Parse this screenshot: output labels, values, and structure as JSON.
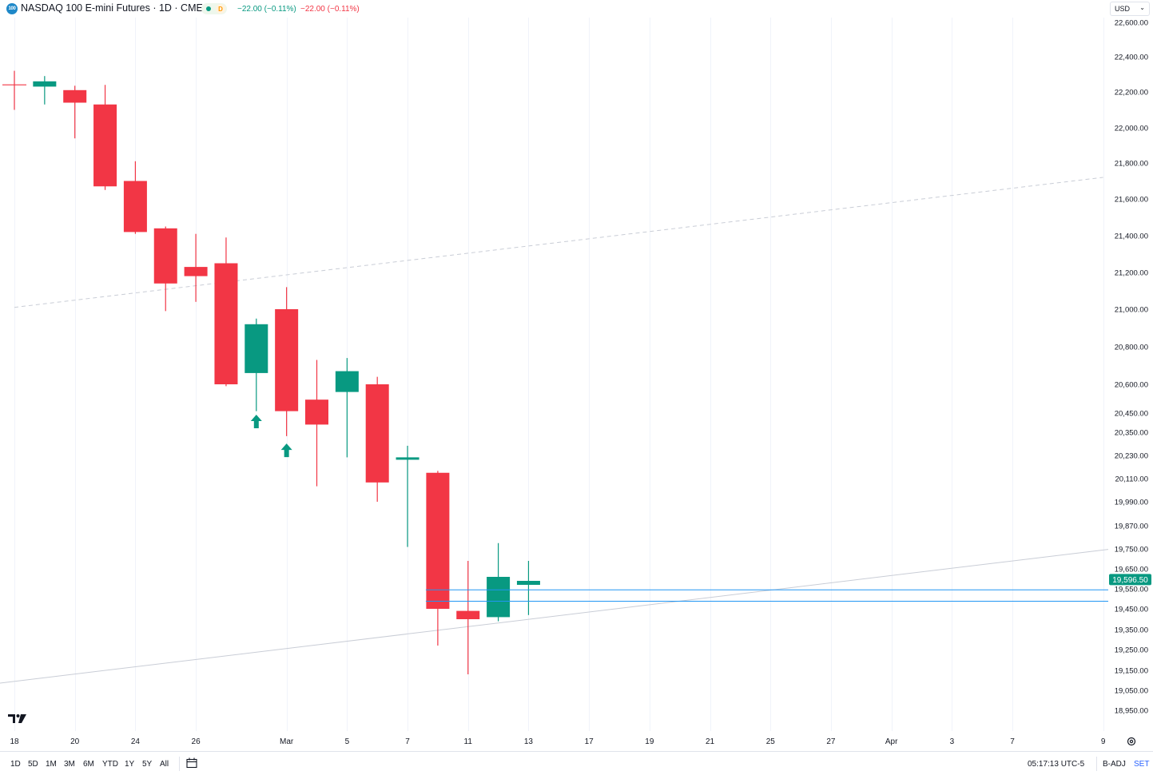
{
  "header": {
    "symbol_badge": "100",
    "title": "NASDAQ 100 E-mini Futures · 1D · CME",
    "timeframe_badge": "D",
    "change_green": "−22.00 (−0.11%)",
    "change_red": "−22.00 (−0.11%)",
    "currency": "USD",
    "colors": {
      "up": "#089981",
      "down": "#f23645",
      "accent": "#2962ff",
      "badge_logo": "#1e88c8",
      "badge_d": "#ff9800"
    }
  },
  "chart_data": {
    "type": "candlestick",
    "title": "NASDAQ 100 E-mini Futures · 1D · CME",
    "ylim": [
      18850,
      22620
    ],
    "y_ticks": [
      "22,600.00",
      "22,400.00",
      "22,200.00",
      "22,000.00",
      "21,800.00",
      "21,600.00",
      "21,400.00",
      "21,200.00",
      "21,000.00",
      "20,800.00",
      "20,600.00",
      "20,450.00",
      "20,350.00",
      "20,230.00",
      "20,110.00",
      "19,990.00",
      "19,870.00",
      "19,750.00",
      "19,650.00",
      "19,550.00",
      "19,450.00",
      "19,350.00",
      "19,250.00",
      "19,150.00",
      "19,050.00",
      "18,950.00"
    ],
    "x_ticks": [
      "18",
      "20",
      "24",
      "26",
      "Mar",
      "5",
      "7",
      "11",
      "13",
      "17",
      "19",
      "21",
      "25",
      "27",
      "Apr",
      "3",
      "7",
      "9"
    ],
    "candles": [
      {
        "date": "Feb 18",
        "open": 22240,
        "high": 22320,
        "low": 22100,
        "close": 22240,
        "dir": "doji"
      },
      {
        "date": "Feb 19",
        "open": 22230,
        "high": 22290,
        "low": 22130,
        "close": 22260,
        "dir": "up"
      },
      {
        "date": "Feb 20",
        "open": 22210,
        "high": 22235,
        "low": 21940,
        "close": 22140,
        "dir": "down"
      },
      {
        "date": "Feb 21",
        "open": 22130,
        "high": 22240,
        "low": 21650,
        "close": 21670,
        "dir": "down"
      },
      {
        "date": "Feb 24",
        "open": 21700,
        "high": 21810,
        "low": 21410,
        "close": 21420,
        "dir": "down"
      },
      {
        "date": "Feb 25",
        "open": 21440,
        "high": 21450,
        "low": 20990,
        "close": 21140,
        "dir": "down"
      },
      {
        "date": "Feb 26",
        "open": 21230,
        "high": 21410,
        "low": 21040,
        "close": 21180,
        "dir": "down"
      },
      {
        "date": "Feb 27",
        "open": 21250,
        "high": 21390,
        "low": 20590,
        "close": 20600,
        "dir": "down"
      },
      {
        "date": "Feb 28",
        "open": 20660,
        "high": 20950,
        "low": 20460,
        "close": 20920,
        "dir": "up"
      },
      {
        "date": "Mar 3",
        "open": 21000,
        "high": 21120,
        "low": 20330,
        "close": 20460,
        "dir": "down"
      },
      {
        "date": "Mar 4",
        "open": 20520,
        "high": 20730,
        "low": 20070,
        "close": 20390,
        "dir": "down"
      },
      {
        "date": "Mar 5",
        "open": 20560,
        "high": 20740,
        "low": 20220,
        "close": 20670,
        "dir": "up"
      },
      {
        "date": "Mar 6",
        "open": 20600,
        "high": 20640,
        "low": 19990,
        "close": 20090,
        "dir": "down"
      },
      {
        "date": "Mar 7",
        "open": 20220,
        "high": 20280,
        "low": 19760,
        "close": 20210,
        "dir": "up"
      },
      {
        "date": "Mar 10",
        "open": 20140,
        "high": 20150,
        "low": 19270,
        "close": 19450,
        "dir": "down"
      },
      {
        "date": "Mar 11",
        "open": 19440,
        "high": 19690,
        "low": 19130,
        "close": 19400,
        "dir": "down"
      },
      {
        "date": "Mar 12",
        "open": 19410,
        "high": 19780,
        "low": 19390,
        "close": 19610,
        "dir": "up"
      },
      {
        "date": "Mar 13",
        "open": 19570,
        "high": 19690,
        "low": 19420,
        "close": 19590,
        "dir": "up"
      }
    ],
    "signals": [
      {
        "date": "Feb 28",
        "type": "up-arrow",
        "price": 20400
      },
      {
        "date": "Mar 3",
        "type": "up-arrow",
        "price": 20250
      }
    ],
    "lines": [
      {
        "kind": "dashed-trend",
        "from": {
          "date": "Feb 18",
          "price": 21010
        },
        "to": {
          "date": "Apr 9",
          "price": 21720
        }
      },
      {
        "kind": "trend",
        "from": {
          "date": "Feb 18",
          "price": 19110
        },
        "to": {
          "date": "Apr 9",
          "price": 19760
        }
      },
      {
        "kind": "horizontal",
        "price": 19545,
        "from_date": "Mar 10"
      },
      {
        "kind": "horizontal",
        "price": 19488,
        "from_date": "Mar 10"
      }
    ],
    "last_price_label": "19,596.50",
    "last_price": 19596.5,
    "grid": true
  },
  "toolbar": {
    "ranges": [
      "1D",
      "5D",
      "1M",
      "3M",
      "6M",
      "YTD",
      "1Y",
      "5Y",
      "All"
    ],
    "clock": "05:17:13 UTC-5",
    "badj": "B-ADJ",
    "set": "SET"
  }
}
